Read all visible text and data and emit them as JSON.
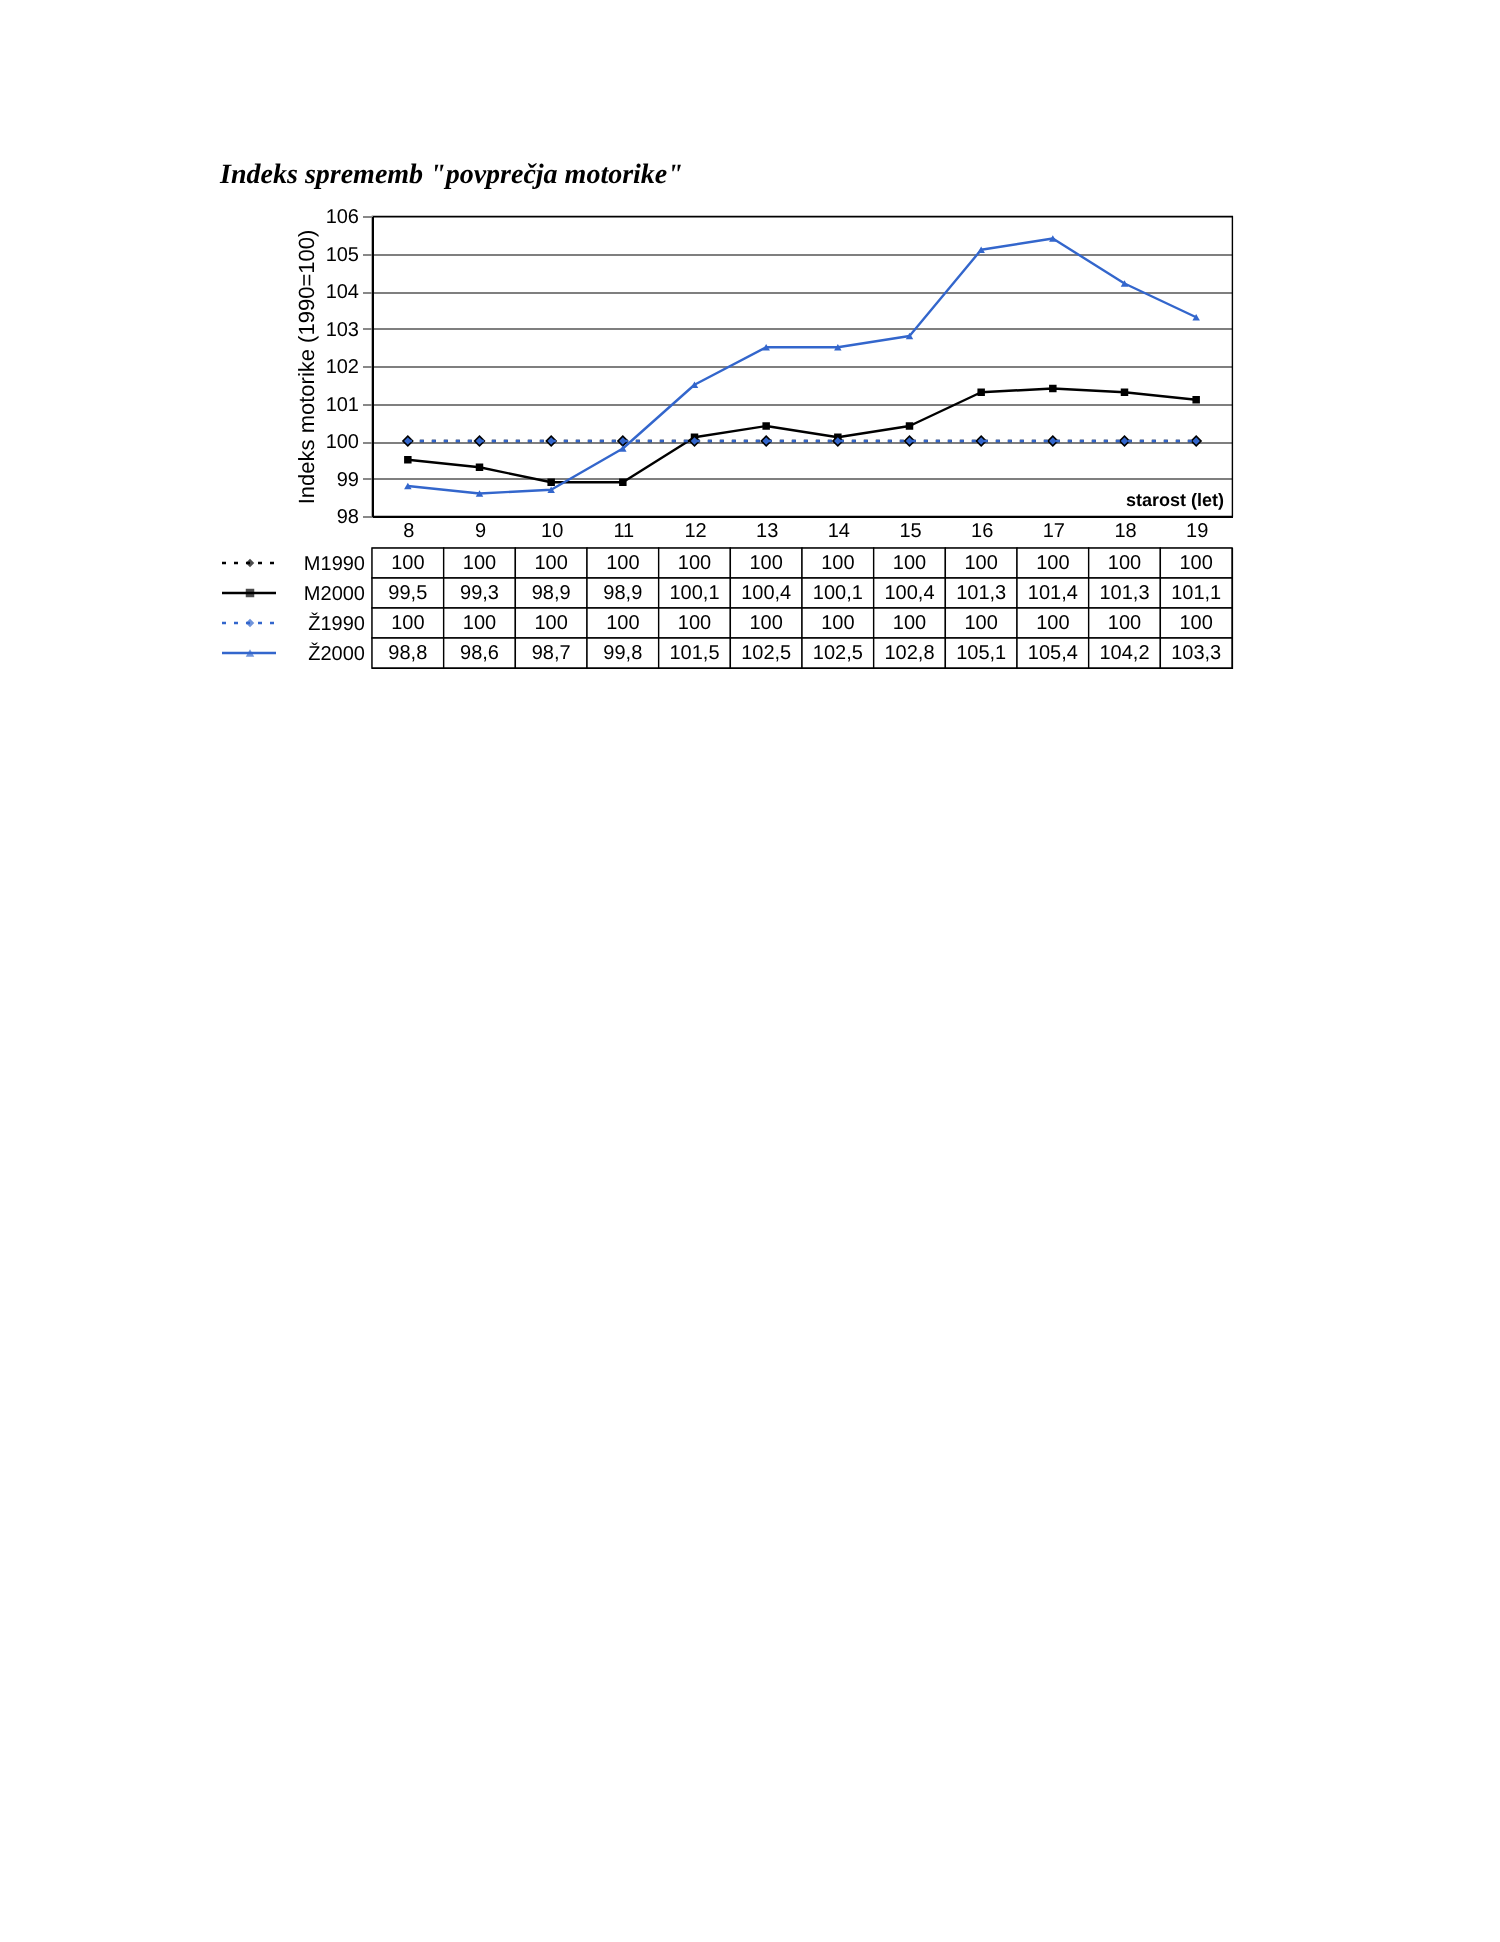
{
  "chart_data": {
    "type": "line",
    "title": "Indeks sprememb \"povprečja motorike\"",
    "xlabel": "starost (let)",
    "ylabel": "Indeks motorike (1990=100)",
    "categories": [
      "8",
      "9",
      "10",
      "11",
      "12",
      "13",
      "14",
      "15",
      "16",
      "17",
      "18",
      "19"
    ],
    "ylim": [
      98,
      106
    ],
    "yticks": [
      98,
      99,
      100,
      101,
      102,
      103,
      104,
      105,
      106
    ],
    "grid": "y",
    "legend": "bottom",
    "series": [
      {
        "name": "M1990",
        "color": "#000000",
        "line_style": "dotted",
        "marker": "diamond",
        "values": [
          100,
          100,
          100,
          100,
          100,
          100,
          100,
          100,
          100,
          100,
          100,
          100
        ],
        "value_labels": [
          "100",
          "100",
          "100",
          "100",
          "100",
          "100",
          "100",
          "100",
          "100",
          "100",
          "100",
          "100"
        ]
      },
      {
        "name": "M2000",
        "color": "#000000",
        "line_style": "solid",
        "marker": "square",
        "values": [
          99.5,
          99.3,
          98.9,
          98.9,
          100.1,
          100.4,
          100.1,
          100.4,
          101.3,
          101.4,
          101.3,
          101.1
        ],
        "value_labels": [
          "99,5",
          "99,3",
          "98,9",
          "98,9",
          "100,1",
          "100,4",
          "100,1",
          "100,4",
          "101,3",
          "101,4",
          "101,3",
          "101,1"
        ]
      },
      {
        "name": "Ž1990",
        "color": "#3366cc",
        "line_style": "dotted",
        "marker": "diamond",
        "values": [
          100,
          100,
          100,
          100,
          100,
          100,
          100,
          100,
          100,
          100,
          100,
          100
        ],
        "value_labels": [
          "100",
          "100",
          "100",
          "100",
          "100",
          "100",
          "100",
          "100",
          "100",
          "100",
          "100",
          "100"
        ]
      },
      {
        "name": "Ž2000",
        "color": "#3366cc",
        "line_style": "solid",
        "marker": "triangle",
        "values": [
          98.8,
          98.6,
          98.7,
          99.8,
          101.5,
          102.5,
          102.5,
          102.8,
          105.1,
          105.4,
          104.2,
          103.3
        ],
        "value_labels": [
          "98,8",
          "98,6",
          "98,7",
          "99,8",
          "101,5",
          "102,5",
          "102,5",
          "102,8",
          "105,1",
          "105,4",
          "104,2",
          "103,3"
        ]
      }
    ]
  }
}
